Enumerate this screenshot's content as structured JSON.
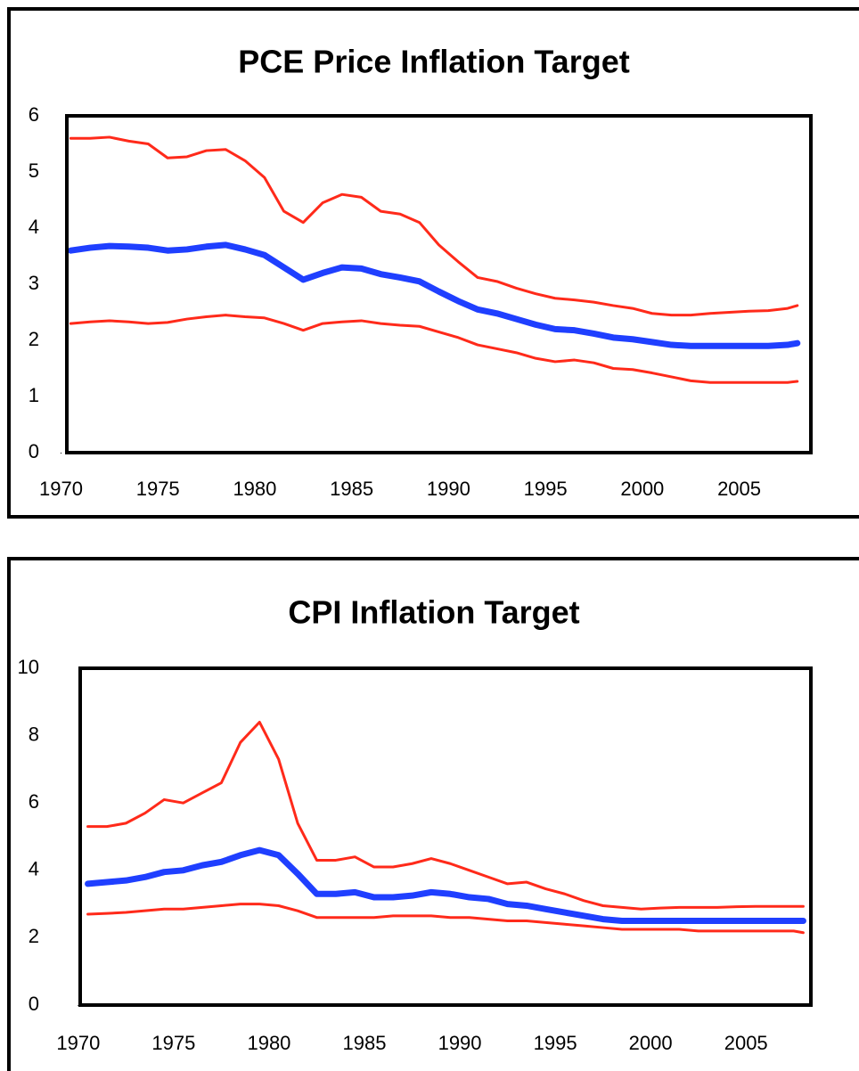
{
  "chart_data": [
    {
      "type": "line",
      "title": "PCE Price Inflation Target",
      "xlim": [
        1970.3,
        2008.7
      ],
      "xticks": [
        1970,
        1975,
        1980,
        1985,
        1990,
        1995,
        2000,
        2005
      ],
      "ylim": [
        0,
        6
      ],
      "yticks": [
        0,
        1,
        2,
        3,
        4,
        5,
        6
      ],
      "grid": false,
      "x": [
        1970.5,
        1971.5,
        1972.5,
        1973.5,
        1974.5,
        1975.5,
        1976.5,
        1977.5,
        1978.5,
        1979.5,
        1980.5,
        1981.5,
        1982.5,
        1983.5,
        1984.5,
        1985.5,
        1986.5,
        1987.5,
        1988.5,
        1989.5,
        1990.5,
        1991.5,
        1992.5,
        1993.5,
        1994.5,
        1995.5,
        1996.5,
        1997.5,
        1998.5,
        1999.5,
        2000.5,
        2001.5,
        2002.5,
        2003.5,
        2004.5,
        2005.5,
        2006.5,
        2007.5,
        2008
      ],
      "series": [
        {
          "color": "#ff2a1a",
          "values": [
            5.6,
            5.6,
            5.62,
            5.55,
            5.5,
            5.25,
            5.27,
            5.38,
            5.4,
            5.2,
            4.9,
            4.3,
            4.1,
            4.45,
            4.6,
            4.55,
            4.3,
            4.25,
            4.1,
            3.7,
            3.4,
            3.12,
            3.05,
            2.93,
            2.83,
            2.75,
            2.72,
            2.68,
            2.62,
            2.57,
            2.48,
            2.45,
            2.45,
            2.48,
            2.5,
            2.52,
            2.53,
            2.57,
            2.62
          ]
        },
        {
          "color": "#1f3fff",
          "values": [
            3.6,
            3.65,
            3.68,
            3.67,
            3.65,
            3.6,
            3.62,
            3.67,
            3.7,
            3.62,
            3.52,
            3.3,
            3.08,
            3.2,
            3.3,
            3.28,
            3.18,
            3.12,
            3.05,
            2.87,
            2.7,
            2.55,
            2.48,
            2.38,
            2.28,
            2.2,
            2.18,
            2.12,
            2.05,
            2.02,
            1.97,
            1.92,
            1.9,
            1.9,
            1.9,
            1.9,
            1.9,
            1.92,
            1.95
          ]
        },
        {
          "color": "#ff2a1a",
          "values": [
            2.3,
            2.33,
            2.35,
            2.33,
            2.3,
            2.32,
            2.38,
            2.42,
            2.45,
            2.42,
            2.4,
            2.3,
            2.18,
            2.3,
            2.33,
            2.35,
            2.3,
            2.27,
            2.25,
            2.15,
            2.05,
            1.92,
            1.85,
            1.78,
            1.68,
            1.62,
            1.65,
            1.6,
            1.5,
            1.48,
            1.42,
            1.35,
            1.28,
            1.25,
            1.25,
            1.25,
            1.25,
            1.25,
            1.27
          ]
        }
      ]
    },
    {
      "type": "line",
      "title": "CPI Inflation Target",
      "xlim": [
        1970.1,
        2008.4
      ],
      "xticks": [
        1970,
        1975,
        1980,
        1985,
        1990,
        1995,
        2000,
        2005
      ],
      "ylim": [
        0,
        10
      ],
      "yticks": [
        0,
        2,
        4,
        6,
        8,
        10
      ],
      "grid": false,
      "x": [
        1970.5,
        1971.5,
        1972.5,
        1973.5,
        1974.5,
        1975.5,
        1976.5,
        1977.5,
        1978.5,
        1979.5,
        1980.5,
        1981.5,
        1982.5,
        1983.5,
        1984.5,
        1985.5,
        1986.5,
        1987.5,
        1988.5,
        1989.5,
        1990.5,
        1991.5,
        1992.5,
        1993.5,
        1994.5,
        1995.5,
        1996.5,
        1997.5,
        1998.5,
        1999.5,
        2000.5,
        2001.5,
        2002.5,
        2003.5,
        2004.5,
        2005.5,
        2006.5,
        2007.5,
        2008
      ],
      "series": [
        {
          "color": "#ff2a1a",
          "values": [
            5.3,
            5.3,
            5.4,
            5.7,
            6.1,
            6.0,
            6.3,
            6.6,
            7.8,
            8.4,
            7.3,
            5.4,
            4.3,
            4.3,
            4.4,
            4.1,
            4.1,
            4.2,
            4.35,
            4.2,
            4.0,
            3.8,
            3.6,
            3.65,
            3.45,
            3.3,
            3.1,
            2.95,
            2.9,
            2.85,
            2.88,
            2.9,
            2.9,
            2.9,
            2.92,
            2.93,
            2.93,
            2.93,
            2.93
          ]
        },
        {
          "color": "#1f3fff",
          "values": [
            3.6,
            3.65,
            3.7,
            3.8,
            3.95,
            4.0,
            4.15,
            4.25,
            4.45,
            4.6,
            4.45,
            3.9,
            3.3,
            3.3,
            3.35,
            3.2,
            3.2,
            3.25,
            3.35,
            3.3,
            3.2,
            3.15,
            3.0,
            2.95,
            2.85,
            2.75,
            2.65,
            2.55,
            2.5,
            2.5,
            2.5,
            2.5,
            2.5,
            2.5,
            2.5,
            2.5,
            2.5,
            2.5,
            2.5
          ]
        },
        {
          "color": "#ff2a1a",
          "values": [
            2.7,
            2.72,
            2.75,
            2.8,
            2.85,
            2.85,
            2.9,
            2.95,
            3.0,
            3.0,
            2.95,
            2.8,
            2.6,
            2.6,
            2.6,
            2.6,
            2.65,
            2.65,
            2.65,
            2.6,
            2.6,
            2.55,
            2.5,
            2.5,
            2.45,
            2.4,
            2.35,
            2.3,
            2.25,
            2.25,
            2.25,
            2.25,
            2.2,
            2.2,
            2.2,
            2.2,
            2.2,
            2.2,
            2.15
          ]
        }
      ]
    }
  ]
}
